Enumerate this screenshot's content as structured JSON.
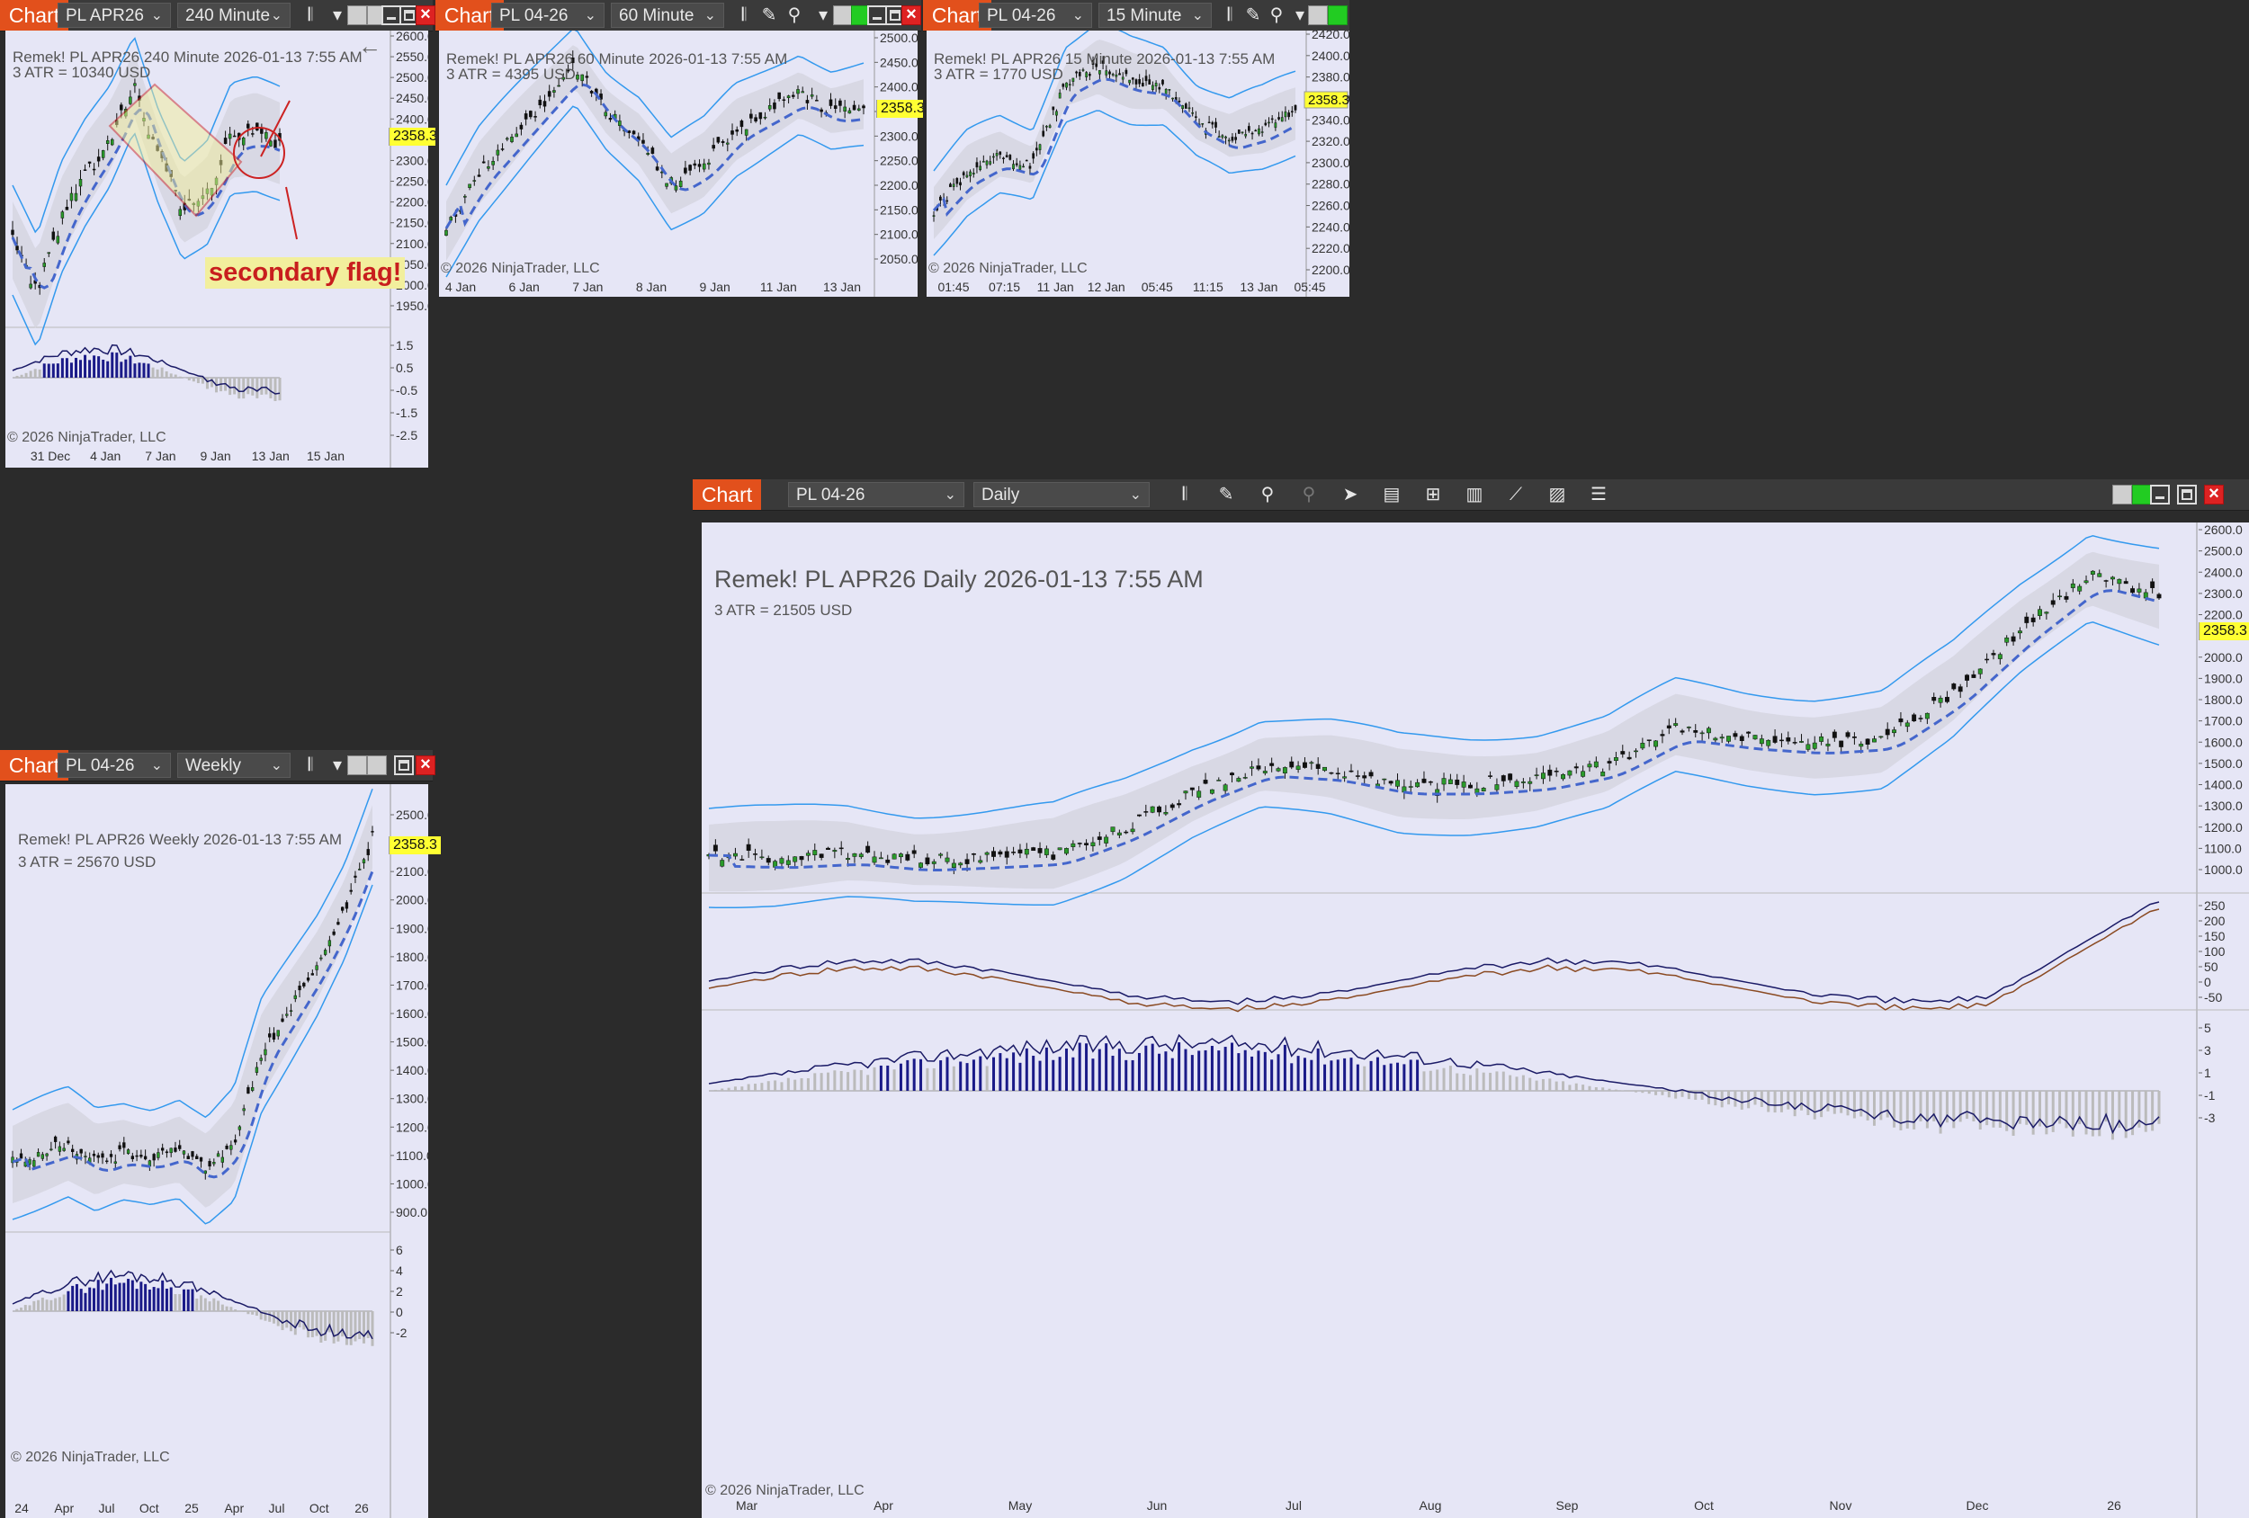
{
  "colors": {
    "accent": "#e2501c",
    "chart_bg": "#e6e6f6",
    "band": "#3399ee",
    "mid_line": "#4466cc",
    "flag_red": "#cc2222",
    "badge": "#ffff33"
  },
  "windows": [
    {
      "id": "w240",
      "tab": "Chart",
      "instrument": "PL APR26",
      "period": "240 Minute",
      "title": "Remek!  PL APR26  240 Minute  2026-01-13 7:55 AM",
      "atr": "3 ATR = 10340 USD",
      "copyright": "© 2026 NinjaTrader, LLC",
      "price_badge": "2358.3",
      "annotation": "secondary flag!",
      "price_axis": [
        "2600.0",
        "2550.0",
        "2500.0",
        "2450.0",
        "2400.0",
        "2350.0",
        "2300.0",
        "2250.0",
        "2200.0",
        "2150.0",
        "2100.0",
        "2050.0",
        "2000.0",
        "1950.0"
      ],
      "osc_axis": [
        "1.5",
        "0.5",
        "-0.5",
        "-1.5",
        "-2.5"
      ],
      "x_axis": [
        "31 Dec",
        "4 Jan",
        "7 Jan",
        "9 Jan",
        "13 Jan",
        "15 Jan"
      ],
      "icons": [
        "bars-icon",
        "chevron-down-icon"
      ]
    },
    {
      "id": "w60",
      "tab": "Chart",
      "instrument": "PL 04-26",
      "period": "60 Minute",
      "title": "Remek!  PL APR26  60 Minute  2026-01-13 7:55 AM",
      "atr": "3 ATR = 4395 USD",
      "copyright": "© 2026 NinjaTrader, LLC",
      "price_badge": "2358.3",
      "price_axis": [
        "2500.0",
        "2450.0",
        "2400.0",
        "2350.0",
        "2300.0",
        "2250.0",
        "2200.0",
        "2150.0",
        "2100.0",
        "2050.0"
      ],
      "x_axis": [
        "4 Jan",
        "6 Jan",
        "7 Jan",
        "8 Jan",
        "9 Jan",
        "11 Jan",
        "13 Jan"
      ],
      "icons": [
        "bars-icon",
        "pencil-icon",
        "zoom-icon",
        "chevron-down-icon"
      ]
    },
    {
      "id": "w15",
      "tab": "Chart",
      "instrument": "PL 04-26",
      "period": "15 Minute",
      "title": "Remek!  PL APR26  15 Minute  2026-01-13 7:55 AM",
      "atr": "3 ATR = 1770 USD",
      "copyright": "© 2026 NinjaTrader, LLC",
      "price_badge": "2358.3",
      "price_axis": [
        "2420.0",
        "2400.0",
        "2380.0",
        "2360.0",
        "2340.0",
        "2320.0",
        "2300.0",
        "2280.0",
        "2260.0",
        "2240.0",
        "2220.0",
        "2200.0"
      ],
      "x_axis": [
        "01:45",
        "07:15",
        "11 Jan",
        "12 Jan",
        "05:45",
        "11:15",
        "13 Jan",
        "05:45"
      ],
      "icons": [
        "bars-icon",
        "pencil-icon",
        "zoom-icon",
        "chevron-down-icon"
      ]
    },
    {
      "id": "wweek",
      "tab": "Chart",
      "instrument": "PL 04-26",
      "period": "Weekly",
      "title": "Remek!  PL APR26  Weekly  2026-01-13 7:55 AM",
      "atr": "3 ATR = 25670 USD",
      "copyright": "© 2026 NinjaTrader, LLC",
      "price_badge": "2358.3",
      "price_axis": [
        "2500.0",
        "2300.0",
        "2100.0",
        "2000.0",
        "1900.0",
        "1800.0",
        "1700.0",
        "1600.0",
        "1500.0",
        "1400.0",
        "1300.0",
        "1200.0",
        "1100.0",
        "1000.0",
        "900.0"
      ],
      "osc_axis": [
        "6",
        "4",
        "2",
        "0",
        "-2"
      ],
      "x_axis": [
        "24",
        "Apr",
        "Jul",
        "Oct",
        "25",
        "Apr",
        "Jul",
        "Oct",
        "26"
      ],
      "icons": [
        "bars-icon",
        "chevron-down-icon"
      ]
    },
    {
      "id": "wdaily",
      "tab": "Chart",
      "instrument": "PL 04-26",
      "period": "Daily",
      "title": "Remek!  PL APR26  Daily  2026-01-13 7:55 AM",
      "atr": "3 ATR = 21505 USD",
      "copyright": "© 2026 NinjaTrader, LLC",
      "price_badge": "2358.3",
      "price_axis": [
        "2600.0",
        "2500.0",
        "2400.0",
        "2300.0",
        "2200.0",
        "2100.0",
        "2000.0",
        "1900.0",
        "1800.0",
        "1700.0",
        "1600.0",
        "1500.0",
        "1400.0",
        "1300.0",
        "1200.0",
        "1100.0",
        "1000.0"
      ],
      "osc1_axis": [
        "250",
        "200",
        "150",
        "100",
        "50",
        "0",
        "-50"
      ],
      "osc2_axis": [
        "5",
        "3",
        "1",
        "-1",
        "-3"
      ],
      "x_axis": [
        "Mar",
        "Apr",
        "May",
        "Jun",
        "Jul",
        "Aug",
        "Sep",
        "Oct",
        "Nov",
        "Dec",
        "26"
      ],
      "icons": [
        "bars-icon",
        "pencil-icon",
        "zoom-in-icon",
        "zoom-out-icon",
        "pointer-icon",
        "data-box-icon",
        "layout-icon",
        "strategy-icon",
        "indicator-icon",
        "strategy-tool-icon",
        "list-icon"
      ]
    }
  ]
}
